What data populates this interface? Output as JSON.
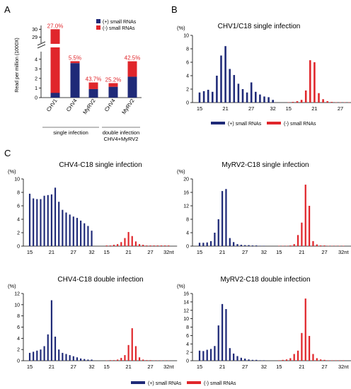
{
  "colors": {
    "plus": "#1f2a78",
    "minus": "#e0262b",
    "pct": "#e0262b",
    "axis": "#000000"
  },
  "panel_labels": [
    "A",
    "B",
    "C"
  ],
  "chart_data": [
    {
      "id": "A",
      "type": "bar",
      "stacked": true,
      "ylabel": "Read per million (1000X)",
      "axis_break": true,
      "yticks_lower": [
        "0",
        "1",
        "2",
        "3",
        "4"
      ],
      "yticks_upper": [
        "29",
        "30"
      ],
      "categories": [
        "CHV1",
        "CHV4",
        "MyRV2",
        "CHV4",
        "MyRV2"
      ],
      "series": [
        {
          "name": "(+) small RNAs",
          "values": [
            21.9,
            3.6,
            0.89,
            1.13,
            2.18
          ]
        },
        {
          "name": "(-) small RNAs",
          "values": [
            8.1,
            0.2,
            0.69,
            0.38,
            1.61
          ]
        }
      ],
      "percent_labels": [
        "27.0%",
        "5.5%",
        "43.7%",
        "25.2%",
        "42.5%"
      ],
      "group_labels": [
        "single infection",
        "double infection",
        "CHV4+MyRV2"
      ],
      "legend_position": "top-right"
    },
    {
      "id": "B",
      "type": "bar",
      "title": "CHV1/C18 single infection",
      "y_unit": "(%)",
      "ylim": [
        0,
        10
      ],
      "yticks": [
        "0",
        "2",
        "4",
        "6",
        "8",
        "10"
      ],
      "xticks": [
        "15",
        "21",
        "27",
        "32",
        "15",
        "21",
        "27",
        "32nt"
      ],
      "plus": [
        1.5,
        1.7,
        1.9,
        1.6,
        4.0,
        7.0,
        8.4,
        5.0,
        4.1,
        2.8,
        2.0,
        1.5,
        3.0,
        1.6,
        1.2,
        0.9,
        0.8,
        0.4
      ],
      "minus": [
        0.05,
        0.1,
        0.2,
        0.4,
        1.8,
        6.3,
        6.0,
        1.4,
        0.5,
        0.2,
        0.1,
        0.05,
        0.05,
        0.05,
        0.05,
        0.05,
        0.05,
        0.05
      ],
      "legend": [
        "(+) small RNAs",
        "(-) small RNAs"
      ]
    },
    {
      "id": "C1",
      "type": "bar",
      "title": "CHV4-C18 single infection",
      "y_unit": "(%)",
      "ylim": [
        0,
        10
      ],
      "yticks": [
        "0",
        "2",
        "4",
        "6",
        "8",
        "10"
      ],
      "xticks": [
        "15",
        "21",
        "27",
        "32",
        "15",
        "21",
        "27",
        "32nt"
      ],
      "plus": [
        7.8,
        7.1,
        7.0,
        7.0,
        7.5,
        7.6,
        7.7,
        8.7,
        6.6,
        5.4,
        5.0,
        4.7,
        4.4,
        4.2,
        3.8,
        3.4,
        3.0,
        2.3
      ],
      "minus": [
        0.1,
        0.1,
        0.2,
        0.3,
        0.6,
        1.2,
        2.1,
        1.5,
        0.7,
        0.3,
        0.2,
        0.1,
        0.1,
        0.1,
        0.1,
        0.1,
        0.1,
        0.1
      ]
    },
    {
      "id": "C2",
      "type": "bar",
      "title": "MyRV2-C18 single infection",
      "y_unit": "(%)",
      "ylim": [
        0,
        20
      ],
      "yticks": [
        "0",
        "4",
        "8",
        "12",
        "16",
        "20"
      ],
      "xticks": [
        "15",
        "21",
        "27",
        "32",
        "15",
        "21",
        "27",
        "32nt"
      ],
      "plus": [
        1.0,
        1.0,
        1.1,
        1.5,
        4.0,
        8.0,
        16.4,
        17.0,
        2.4,
        1.2,
        0.6,
        0.4,
        0.3,
        0.3,
        0.2,
        0.2,
        0.1,
        0.1
      ],
      "minus": [
        0.1,
        0.1,
        0.1,
        0.2,
        0.6,
        3.3,
        7.0,
        18.3,
        12.0,
        1.5,
        0.5,
        0.2,
        0.2,
        0.1,
        0.1,
        0.1,
        0.1,
        0.1
      ]
    },
    {
      "id": "C3",
      "type": "bar",
      "title": "CHV4-C18 double infection",
      "y_unit": "(%)",
      "ylim": [
        0,
        12
      ],
      "yticks": [
        "0",
        "2",
        "4",
        "6",
        "8",
        "10",
        "12"
      ],
      "xticks": [
        "15",
        "21",
        "27",
        "32",
        "15",
        "21",
        "27",
        "32nt"
      ],
      "plus": [
        1.4,
        1.6,
        1.8,
        2.0,
        2.6,
        4.7,
        10.8,
        4.3,
        2.0,
        1.4,
        1.2,
        1.0,
        0.8,
        0.6,
        0.4,
        0.3,
        0.2,
        0.2
      ],
      "minus": [
        0.05,
        0.1,
        0.1,
        0.2,
        0.5,
        1.0,
        2.8,
        5.8,
        2.6,
        0.6,
        0.2,
        0.1,
        0.1,
        0.05,
        0.05,
        0.05,
        0.05,
        0.05
      ]
    },
    {
      "id": "C4",
      "type": "bar",
      "title": "MyRV2-C18 double infection",
      "y_unit": "(%)",
      "ylim": [
        0,
        16
      ],
      "yticks": [
        "0",
        "2",
        "4",
        "6",
        "8",
        "10",
        "12",
        "14",
        "16"
      ],
      "xticks": [
        "15",
        "21",
        "27",
        "32",
        "15",
        "21",
        "27",
        "32nt"
      ],
      "plus": [
        2.4,
        2.3,
        2.6,
        2.8,
        3.5,
        8.4,
        13.5,
        12.3,
        3.0,
        1.7,
        1.1,
        0.7,
        0.5,
        0.3,
        0.2,
        0.2,
        0.1,
        0.1
      ],
      "minus": [
        0.1,
        0.2,
        0.3,
        0.6,
        1.6,
        2.4,
        6.6,
        14.8,
        5.9,
        1.6,
        0.6,
        0.3,
        0.2,
        0.1,
        0.1,
        0.1,
        0.1,
        0.1
      ]
    }
  ],
  "legend_bottom": [
    "(+) small RNAs",
    "(-) small RNAs"
  ]
}
